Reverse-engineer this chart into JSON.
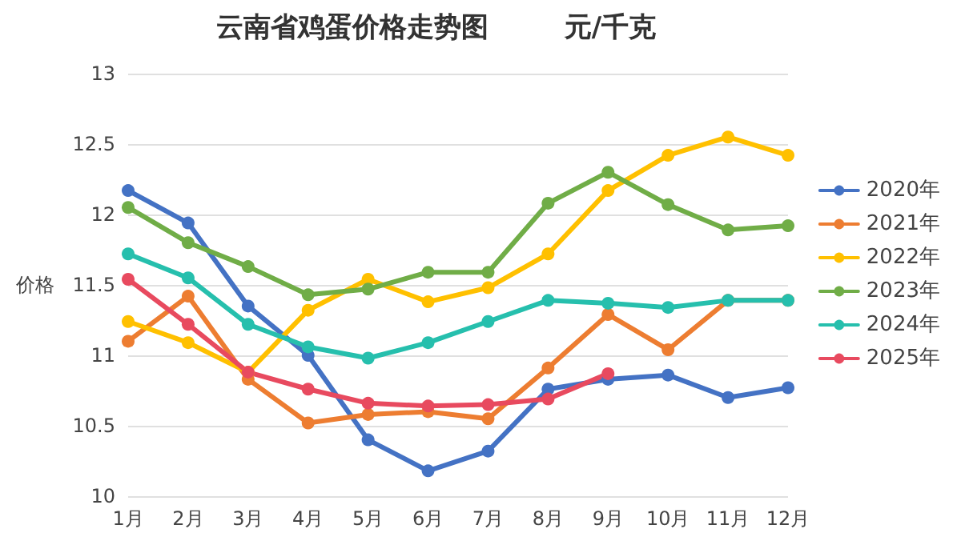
{
  "chart_data": {
    "type": "line",
    "title": "云南省鸡蛋价格走势图        元/千克",
    "ylabel": "价格",
    "categories": [
      "1月",
      "2月",
      "3月",
      "4月",
      "5月",
      "6月",
      "7月",
      "8月",
      "9月",
      "10月",
      "11月",
      "12月"
    ],
    "series": [
      {
        "name": "2020年",
        "color": "#4472c4",
        "values": [
          12.17,
          11.94,
          11.35,
          11.0,
          10.4,
          10.18,
          10.32,
          10.76,
          10.83,
          10.86,
          10.7,
          10.77
        ]
      },
      {
        "name": "2021年",
        "color": "#ed7d31",
        "values": [
          11.1,
          11.42,
          10.83,
          10.52,
          10.58,
          10.6,
          10.55,
          10.91,
          11.29,
          11.04,
          11.39,
          11.39
        ]
      },
      {
        "name": "2022年",
        "color": "#ffc000",
        "values": [
          11.24,
          11.09,
          10.88,
          11.32,
          11.54,
          11.38,
          11.48,
          11.72,
          12.17,
          12.42,
          12.55,
          12.42
        ]
      },
      {
        "name": "2023年",
        "color": "#70ad47",
        "values": [
          12.05,
          11.8,
          11.63,
          11.43,
          11.47,
          11.59,
          11.59,
          12.08,
          12.3,
          12.07,
          11.89,
          11.92
        ]
      },
      {
        "name": "2024年",
        "color": "#26bfad",
        "values": [
          11.72,
          11.55,
          11.22,
          11.06,
          10.98,
          11.09,
          11.24,
          11.39,
          11.37,
          11.34,
          11.39,
          11.39
        ]
      },
      {
        "name": "2025年",
        "color": "#e84a5f",
        "values": [
          11.54,
          11.22,
          10.88,
          10.76,
          10.66,
          10.64,
          10.65,
          10.69,
          10.87,
          null,
          null,
          null
        ]
      }
    ],
    "ylim": [
      10,
      13
    ],
    "yticks": [
      10,
      10.5,
      11,
      11.5,
      12,
      12.5,
      13
    ],
    "grid": "y",
    "legend": "right",
    "marker": "circle",
    "line_style": "solid"
  }
}
